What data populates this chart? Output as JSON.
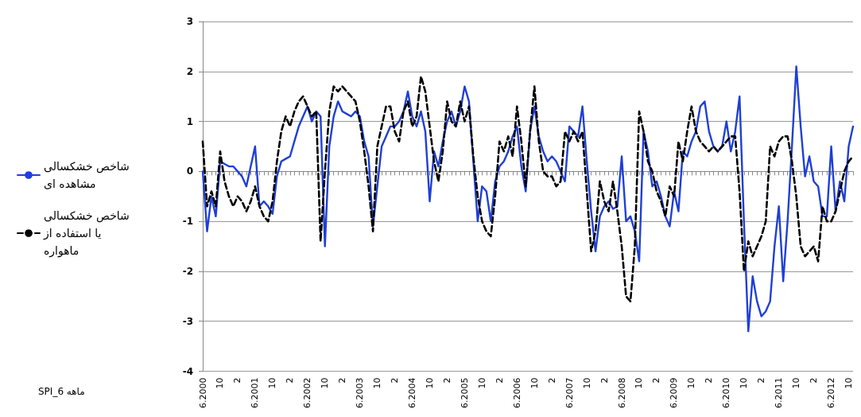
{
  "chart_data": {
    "type": "line",
    "ylim": [
      -4,
      3
    ],
    "yticks": [
      -4,
      -3,
      -2,
      -1,
      0,
      1,
      2,
      3
    ],
    "grid": "y",
    "legend": "left",
    "marker": "none",
    "annotations": [
      "SPI_6 ماهه"
    ],
    "categories": [
      "6.2000",
      null,
      null,
      null,
      "10",
      null,
      null,
      null,
      "2",
      null,
      null,
      null,
      "6.2001",
      null,
      null,
      null,
      "10",
      null,
      null,
      null,
      "2",
      null,
      null,
      null,
      "6.2002",
      null,
      null,
      null,
      "10",
      null,
      null,
      null,
      "2",
      null,
      null,
      null,
      "6.2003",
      null,
      null,
      null,
      "10",
      null,
      null,
      null,
      "2",
      null,
      null,
      null,
      "6.2004",
      null,
      null,
      null,
      "10",
      null,
      null,
      null,
      "2",
      null,
      null,
      null,
      "6.2005",
      null,
      null,
      null,
      "10",
      null,
      null,
      null,
      "2",
      null,
      null,
      null,
      "6.2006",
      null,
      null,
      null,
      "10",
      null,
      null,
      null,
      "2",
      null,
      null,
      null,
      "6.2007",
      null,
      null,
      null,
      "10",
      null,
      null,
      null,
      "2",
      null,
      null,
      null,
      "6.2008",
      null,
      null,
      null,
      "10",
      null,
      null,
      null,
      "2",
      null,
      null,
      null,
      "6.2009",
      null,
      null,
      null,
      "10",
      null,
      null,
      null,
      "2",
      null,
      null,
      null,
      "6.2010",
      null,
      null,
      null,
      "10",
      null,
      null,
      null,
      "2",
      null,
      null,
      null,
      "6.2011",
      null,
      null,
      null,
      "10",
      null,
      null,
      null,
      "2",
      null,
      null,
      null,
      "6.2012",
      null,
      null,
      null,
      "10",
      null
    ],
    "series": [
      {
        "name": "شاخص خشکسالی مشاهده ای",
        "color": "#1f3fd6",
        "line_style": "solid",
        "values": [
          0.0,
          -1.2,
          -0.5,
          -0.9,
          0.2,
          0.15,
          0.1,
          0.1,
          0.0,
          -0.1,
          -0.3,
          0.1,
          0.5,
          -0.7,
          -0.6,
          -0.7,
          -0.85,
          -0.1,
          0.2,
          0.25,
          0.3,
          0.6,
          0.9,
          1.1,
          1.3,
          1.0,
          1.2,
          1.1,
          -1.5,
          0.5,
          1.1,
          1.4,
          1.2,
          1.15,
          1.1,
          1.2,
          1.1,
          0.6,
          0.3,
          -1.1,
          -0.3,
          0.5,
          0.7,
          0.9,
          0.9,
          1.0,
          1.2,
          1.6,
          1.1,
          0.9,
          1.2,
          0.8,
          -0.6,
          0.4,
          0.1,
          0.6,
          1.0,
          1.2,
          0.9,
          1.2,
          1.7,
          1.4,
          0.2,
          -1.0,
          -0.3,
          -0.4,
          -1.0,
          -0.2,
          0.1,
          0.2,
          0.4,
          0.7,
          0.9,
          0.1,
          -0.4,
          0.8,
          1.3,
          0.7,
          0.4,
          0.2,
          0.3,
          0.2,
          0.0,
          -0.2,
          0.9,
          0.8,
          0.7,
          1.3,
          0.2,
          -0.8,
          -1.6,
          -0.9,
          -0.7,
          -0.6,
          -0.75,
          -0.7,
          0.3,
          -1.0,
          -0.9,
          -1.2,
          -1.8,
          0.8,
          0.4,
          -0.3,
          -0.2,
          -0.5,
          -0.9,
          -1.1,
          -0.4,
          -0.8,
          0.4,
          0.3,
          0.6,
          0.8,
          1.3,
          1.4,
          0.8,
          0.5,
          0.4,
          0.5,
          1.0,
          0.4,
          0.8,
          1.5,
          -1.0,
          -3.2,
          -2.1,
          -2.6,
          -2.9,
          -2.8,
          -2.6,
          -1.5,
          -0.7,
          -2.2,
          -1.0,
          0.5,
          2.1,
          0.9,
          -0.1,
          0.3,
          -0.2,
          -0.3,
          -0.9,
          -0.9,
          0.5,
          -0.8,
          -0.2,
          -0.6,
          0.5,
          0.9
        ]
      },
      {
        "name": "شاخص خشکسالی یا استفاده از ماهواره",
        "color": "#000000",
        "line_style": "dashed",
        "values": [
          0.6,
          -0.7,
          -0.4,
          -0.7,
          0.4,
          -0.2,
          -0.5,
          -0.7,
          -0.5,
          -0.6,
          -0.8,
          -0.6,
          -0.3,
          -0.7,
          -0.9,
          -1.0,
          -0.6,
          0.2,
          0.8,
          1.1,
          0.9,
          1.2,
          1.4,
          1.5,
          1.3,
          1.1,
          1.2,
          -1.4,
          0.0,
          1.2,
          1.7,
          1.6,
          1.7,
          1.6,
          1.5,
          1.4,
          1.0,
          0.4,
          -0.3,
          -1.2,
          0.5,
          0.9,
          1.3,
          1.3,
          0.8,
          0.6,
          1.2,
          1.4,
          0.9,
          1.1,
          1.9,
          1.6,
          0.9,
          0.2,
          -0.2,
          0.4,
          1.4,
          1.0,
          0.9,
          1.4,
          1.0,
          1.3,
          0.3,
          -0.5,
          -1.0,
          -1.2,
          -1.3,
          -0.5,
          0.6,
          0.4,
          0.7,
          0.3,
          1.3,
          0.6,
          -0.3,
          0.8,
          1.7,
          0.6,
          0.0,
          -0.1,
          -0.1,
          -0.3,
          -0.2,
          0.8,
          0.6,
          0.8,
          0.6,
          0.8,
          -0.4,
          -1.6,
          -1.2,
          -0.2,
          -0.6,
          -0.8,
          -0.2,
          -0.8,
          -1.5,
          -2.5,
          -2.6,
          -1.5,
          1.2,
          0.8,
          0.2,
          0.0,
          -0.4,
          -0.6,
          -0.9,
          -0.3,
          -0.5,
          0.6,
          0.2,
          0.8,
          1.3,
          0.8,
          0.6,
          0.5,
          0.4,
          0.5,
          0.4,
          0.5,
          0.6,
          0.7,
          0.7,
          -0.4,
          -2.0,
          -1.4,
          -1.7,
          -1.5,
          -1.3,
          -1.0,
          0.5,
          0.3,
          0.6,
          0.7,
          0.7,
          0.2,
          -0.5,
          -1.5,
          -1.7,
          -1.6,
          -1.5,
          -1.8,
          -0.7,
          -1.0,
          -1.0,
          -0.8,
          -0.4,
          0.0,
          0.2,
          0.3
        ]
      }
    ]
  }
}
